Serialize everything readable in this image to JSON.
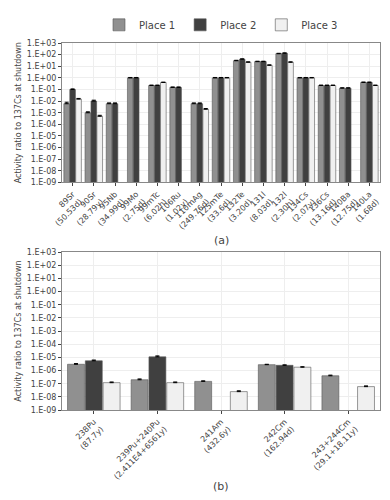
{
  "chart_data": [
    {
      "type": "bar",
      "categories": [
        "89Sr\n(50.53d)",
        "90Sr\n(28.79y)",
        "95Nb\n(34.99d)",
        "99Mo\n(2.75d)",
        "99mTc\n(6.02h)",
        "106Ru\n(1.02y)",
        "110mAg\n(249.76d)",
        "125mTe\n(33.6d)",
        "132Te\n(3.20d)",
        "131I\n(8.03d)",
        "132I\n(2.30h)",
        "134Cs\n(2.07y)",
        "136Cs\n(13.16d)",
        "140Ba\n(12.75d)",
        "140La\n(1.68d)"
      ],
      "series": [
        {
          "name": "Place 1",
          "color": "#909090",
          "values": [
            0.006,
            0.001,
            0.006,
            1.0,
            0.22,
            0.15,
            0.006,
            1.0,
            30.0,
            25.0,
            120.0,
            1.0,
            0.22,
            0.13,
            0.4
          ],
          "errors": [
            0.002,
            0.0002,
            0.001,
            0.08,
            0.02,
            0.015,
            0.001,
            0.08,
            2.5,
            2.0,
            10.0,
            0.08,
            0.02,
            0.01,
            0.04
          ]
        },
        {
          "name": "Place 2",
          "color": "#404040",
          "values": [
            0.1,
            0.01,
            0.006,
            1.0,
            0.22,
            0.15,
            0.006,
            1.0,
            40.0,
            25.0,
            130.0,
            1.0,
            0.22,
            0.13,
            0.4
          ],
          "errors": [
            0.012,
            0.002,
            0.001,
            0.08,
            0.02,
            0.015,
            0.001,
            0.08,
            3.5,
            2.0,
            12.0,
            0.08,
            0.02,
            0.01,
            0.04
          ]
        },
        {
          "name": "Place 3",
          "color": "#f0f0f0",
          "values": [
            0.015,
            0.0005,
            null,
            null,
            0.4,
            null,
            0.002,
            1.0,
            22.0,
            12.0,
            22.0,
            1.0,
            0.22,
            null,
            0.22
          ],
          "errors": [
            0.002,
            0.0001,
            null,
            null,
            0.03,
            null,
            0.0003,
            0.08,
            2.0,
            1.2,
            2.0,
            0.08,
            0.02,
            null,
            0.02
          ]
        }
      ],
      "ylabel": "Activity ratio to 137Cs at shutdown",
      "ylim": [
        1e-09,
        1000
      ],
      "yticks": [
        {
          "value": 1e-09,
          "label": "1.E-09"
        },
        {
          "value": 1e-08,
          "label": "1.E-08"
        },
        {
          "value": 1e-07,
          "label": "1.E-07"
        },
        {
          "value": 1e-06,
          "label": "1.E-06"
        },
        {
          "value": 1e-05,
          "label": "1.E-05"
        },
        {
          "value": 0.0001,
          "label": "1.E-04"
        },
        {
          "value": 0.001,
          "label": "1.E-03"
        },
        {
          "value": 0.01,
          "label": "1.E-02"
        },
        {
          "value": 0.1,
          "label": "1.E-01"
        },
        {
          "value": 1,
          "label": "1.E+00"
        },
        {
          "value": 10,
          "label": "1.E+01"
        },
        {
          "value": 100,
          "label": "1.E+02"
        },
        {
          "value": 1000,
          "label": "1.E+03"
        }
      ],
      "log": "y",
      "grid": true,
      "legend": "top",
      "annotations": [
        "(a)"
      ]
    },
    {
      "type": "bar",
      "categories": [
        "238Pu\n(87.7y)",
        "239Pu+240Pu\n(2.411E4+6561y)",
        "241Am\n(432.6y)",
        "242Cm\n(162.94d)",
        "243+244Cm\n(29.1+18.11y)"
      ],
      "series": [
        {
          "name": "Place 1",
          "color": "#909090",
          "values": [
            3e-06,
            2e-07,
            1.5e-07,
            2.8e-06,
            4e-07
          ],
          "errors": [
            4e-07,
            3e-08,
            1.5e-08,
            2e-07,
            5e-08
          ]
        },
        {
          "name": "Place 2",
          "color": "#404040",
          "values": [
            5.5e-06,
            1.1e-05,
            null,
            2.5e-06,
            null
          ],
          "errors": [
            8e-07,
            2e-06,
            null,
            2e-07,
            null
          ]
        },
        {
          "name": "Place 3",
          "color": "#f0f0f0",
          "values": [
            1.2e-07,
            1.2e-07,
            2.5e-08,
            1.8e-06,
            6e-08
          ],
          "errors": [
            1.5e-08,
            1.5e-08,
            4e-09,
            1.5e-07,
            8e-09
          ]
        }
      ],
      "ylabel": "Activity ratio to 137Cs at shutdown",
      "ylim": [
        1e-09,
        1000
      ],
      "yticks": [
        {
          "value": 1e-09,
          "label": "1.E-09"
        },
        {
          "value": 1e-08,
          "label": "1.E-08"
        },
        {
          "value": 1e-07,
          "label": "1.E-07"
        },
        {
          "value": 1e-06,
          "label": "1.E-06"
        },
        {
          "value": 1e-05,
          "label": "1.E-05"
        },
        {
          "value": 0.0001,
          "label": "1.E-04"
        },
        {
          "value": 0.001,
          "label": "1.E-03"
        },
        {
          "value": 0.01,
          "label": "1.E-02"
        },
        {
          "value": 0.1,
          "label": "1.E-01"
        },
        {
          "value": 1,
          "label": "1.E+00"
        },
        {
          "value": 10,
          "label": "1.E+01"
        },
        {
          "value": 100,
          "label": "1.E+02"
        },
        {
          "value": 1000,
          "label": "1.E+03"
        }
      ],
      "log": "y",
      "grid": true,
      "annotations": [
        "(b)"
      ]
    }
  ]
}
